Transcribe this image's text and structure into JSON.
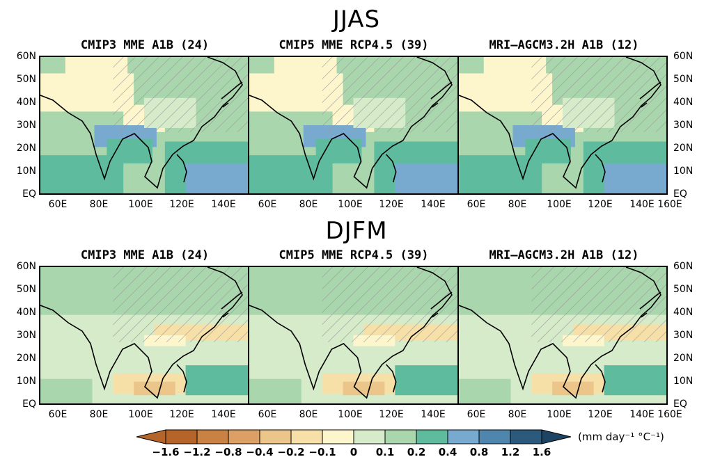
{
  "rows": [
    {
      "season": "JJAS",
      "panels": [
        {
          "title": "CMIP3 MME A1B (24)"
        },
        {
          "title": "CMIP5 MME RCP4.5 (39)"
        },
        {
          "title": "MRI—AGCM3.2H A1B (12)"
        }
      ]
    },
    {
      "season": "DJFM",
      "panels": [
        {
          "title": "CMIP3 MME A1B (24)"
        },
        {
          "title": "CMIP5 MME RCP4.5 (39)"
        },
        {
          "title": "MRI—AGCM3.2H A1B (12)"
        }
      ]
    }
  ],
  "lat_labels": [
    "60N",
    "50N",
    "40N",
    "30N",
    "20N",
    "10N",
    "EQ"
  ],
  "lon_labels_short": [
    "60E",
    "80E",
    "100E",
    "120E",
    "140E"
  ],
  "lon_labels_full": [
    "60E",
    "80E",
    "100E",
    "120E",
    "140E",
    "160E"
  ],
  "colorbar": {
    "ticks": [
      "−1.6",
      "−1.2",
      "−0.8",
      "−0.4",
      "−0.2",
      "−0.1",
      "0",
      "0.1",
      "0.2",
      "0.4",
      "0.8",
      "1.2",
      "1.6"
    ],
    "unit": "(mm day⁻¹ °C⁻¹)",
    "colors": [
      "#b5652a",
      "#c98244",
      "#dca066",
      "#ecc58a",
      "#f6e0a8",
      "#fdf6cd",
      "#d6ebc9",
      "#a9d6ad",
      "#5fbb9e",
      "#78a9cf",
      "#4f86ad",
      "#2c5a7c"
    ]
  }
}
